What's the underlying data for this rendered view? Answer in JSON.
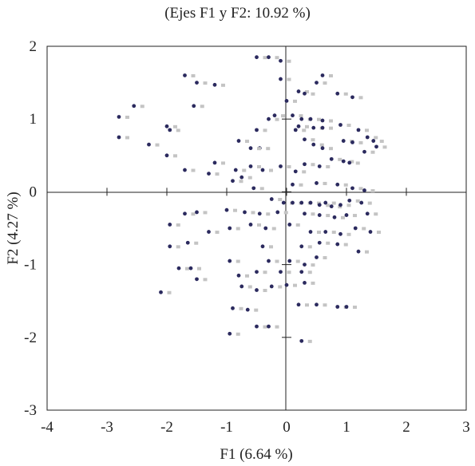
{
  "chart_data": {
    "type": "scatter",
    "title": "(Ejes F1 y F2: 10.92 %)",
    "xlabel": "F1 (6.64 %)",
    "ylabel": "F2 (4.27 %)",
    "xlim": [
      -4,
      3
    ],
    "ylim": [
      -3,
      2
    ],
    "x_ticks": [
      "-4",
      "-3",
      "-2",
      "-1",
      "0",
      "1",
      "2",
      "3"
    ],
    "y_ticks": [
      "2",
      "1",
      "0",
      "-1",
      "-2",
      "-3"
    ],
    "grid": false,
    "colors": {
      "dark": "#2b2a5e",
      "light": "#c4c4c4"
    },
    "points": [
      [
        -0.5,
        1.85
      ],
      [
        -0.3,
        1.85
      ],
      [
        -0.1,
        1.8
      ],
      [
        -1.7,
        1.6
      ],
      [
        -1.5,
        1.5
      ],
      [
        -1.2,
        1.47
      ],
      [
        -0.1,
        1.55
      ],
      [
        0.6,
        1.6
      ],
      [
        0.5,
        1.5
      ],
      [
        0.2,
        1.38
      ],
      [
        0.3,
        1.35
      ],
      [
        0.0,
        1.25
      ],
      [
        -2.55,
        1.18
      ],
      [
        -2.8,
        1.03
      ],
      [
        -1.55,
        1.18
      ],
      [
        0.85,
        1.35
      ],
      [
        1.1,
        1.3
      ],
      [
        -0.2,
        1.05
      ],
      [
        -0.3,
        1.0
      ],
      [
        0.1,
        1.05
      ],
      [
        0.25,
        1.0
      ],
      [
        0.4,
        1.0
      ],
      [
        0.6,
        0.98
      ],
      [
        -2.0,
        0.9
      ],
      [
        -1.95,
        0.85
      ],
      [
        -0.5,
        0.85
      ],
      [
        -0.8,
        0.7
      ],
      [
        0.15,
        0.85
      ],
      [
        0.2,
        0.9
      ],
      [
        0.45,
        0.88
      ],
      [
        0.6,
        0.88
      ],
      [
        0.9,
        0.92
      ],
      [
        1.2,
        0.85
      ],
      [
        1.35,
        0.75
      ],
      [
        1.45,
        0.7
      ],
      [
        -2.8,
        0.75
      ],
      [
        -2.3,
        0.65
      ],
      [
        -2.0,
        0.5
      ],
      [
        -0.45,
        0.6
      ],
      [
        -0.6,
        0.6
      ],
      [
        0.3,
        0.72
      ],
      [
        0.45,
        0.65
      ],
      [
        0.6,
        0.6
      ],
      [
        0.95,
        0.7
      ],
      [
        1.1,
        0.68
      ],
      [
        1.3,
        0.55
      ],
      [
        1.5,
        0.62
      ],
      [
        -1.7,
        0.3
      ],
      [
        -1.2,
        0.4
      ],
      [
        -1.3,
        0.25
      ],
      [
        -0.85,
        0.3
      ],
      [
        -0.6,
        0.35
      ],
      [
        -0.4,
        0.3
      ],
      [
        -0.1,
        0.35
      ],
      [
        0.15,
        0.28
      ],
      [
        0.3,
        0.38
      ],
      [
        0.55,
        0.35
      ],
      [
        0.75,
        0.45
      ],
      [
        0.95,
        0.42
      ],
      [
        1.05,
        0.4
      ],
      [
        -0.9,
        0.15
      ],
      [
        -0.75,
        0.2
      ],
      [
        -0.55,
        0.05
      ],
      [
        0.1,
        0.1
      ],
      [
        0.5,
        0.12
      ],
      [
        0.85,
        0.1
      ],
      [
        1.1,
        0.05
      ],
      [
        1.3,
        0.02
      ],
      [
        -0.25,
        -0.1
      ],
      [
        -0.05,
        -0.15
      ],
      [
        0.1,
        -0.15
      ],
      [
        0.25,
        -0.15
      ],
      [
        0.4,
        -0.15
      ],
      [
        0.55,
        -0.18
      ],
      [
        0.65,
        -0.15
      ],
      [
        0.75,
        -0.2
      ],
      [
        0.9,
        -0.18
      ],
      [
        1.05,
        -0.12
      ],
      [
        1.25,
        -0.15
      ],
      [
        -1.7,
        -0.3
      ],
      [
        -1.5,
        -0.28
      ],
      [
        -1.0,
        -0.25
      ],
      [
        -0.7,
        -0.28
      ],
      [
        -0.45,
        -0.3
      ],
      [
        -0.15,
        -0.28
      ],
      [
        0.3,
        -0.3
      ],
      [
        0.55,
        -0.32
      ],
      [
        0.8,
        -0.35
      ],
      [
        1.0,
        -0.32
      ],
      [
        1.35,
        -0.3
      ],
      [
        -1.95,
        -0.45
      ],
      [
        -1.3,
        -0.55
      ],
      [
        -0.95,
        -0.5
      ],
      [
        -0.6,
        -0.45
      ],
      [
        -0.35,
        -0.5
      ],
      [
        0.05,
        -0.45
      ],
      [
        0.4,
        -0.55
      ],
      [
        0.65,
        -0.55
      ],
      [
        0.9,
        -0.58
      ],
      [
        1.15,
        -0.5
      ],
      [
        1.4,
        -0.55
      ],
      [
        -1.95,
        -0.75
      ],
      [
        -1.65,
        -0.7
      ],
      [
        -0.4,
        -0.75
      ],
      [
        0.25,
        -0.75
      ],
      [
        0.55,
        -0.7
      ],
      [
        0.85,
        -0.72
      ],
      [
        1.2,
        -0.82
      ],
      [
        -1.8,
        -1.05
      ],
      [
        -1.6,
        -1.05
      ],
      [
        -0.95,
        -0.95
      ],
      [
        -0.3,
        -0.95
      ],
      [
        0.05,
        -0.95
      ],
      [
        0.3,
        -1.0
      ],
      [
        0.5,
        -0.9
      ],
      [
        -1.5,
        -1.2
      ],
      [
        -0.8,
        -1.15
      ],
      [
        -0.5,
        -1.1
      ],
      [
        -0.1,
        -1.1
      ],
      [
        0.25,
        -1.1
      ],
      [
        -2.1,
        -1.38
      ],
      [
        -0.75,
        -1.3
      ],
      [
        -0.5,
        -1.35
      ],
      [
        -0.25,
        -1.3
      ],
      [
        0.0,
        -1.28
      ],
      [
        0.3,
        -1.25
      ],
      [
        -0.9,
        -1.6
      ],
      [
        -0.65,
        -1.62
      ],
      [
        0.2,
        -1.55
      ],
      [
        0.5,
        -1.55
      ],
      [
        0.85,
        -1.58
      ],
      [
        1.0,
        -1.58
      ],
      [
        -0.5,
        -1.85
      ],
      [
        -0.3,
        -1.85
      ],
      [
        -0.95,
        -1.95
      ],
      [
        0.25,
        -2.05
      ]
    ]
  }
}
